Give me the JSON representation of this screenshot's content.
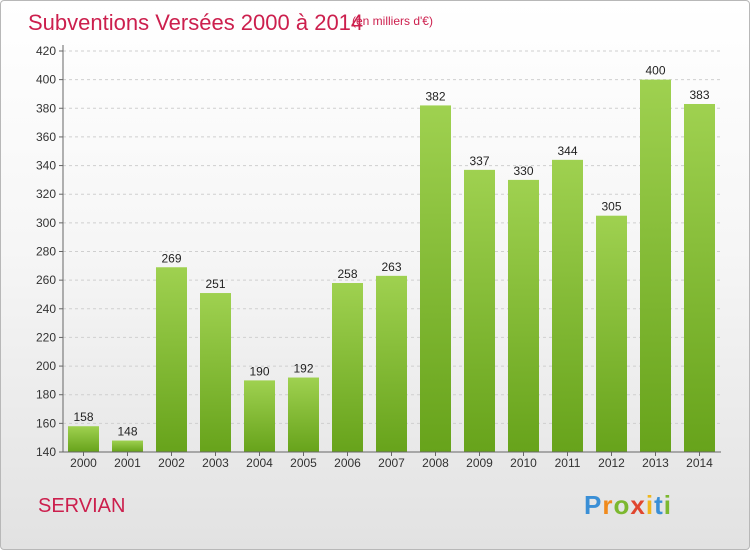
{
  "title": "Subventions Versées 2000 à 2014",
  "unit_note": "(en milliers d'€)",
  "commune": "SERVIAN",
  "logo": {
    "letters": [
      "P",
      "r",
      "o",
      "x",
      "i",
      "t",
      "i"
    ],
    "colors": [
      "#3a8fd6",
      "#f08a1c",
      "#7cb82f",
      "#e0462e",
      "#f0b71c",
      "#3a8fd6",
      "#7cb82f"
    ]
  },
  "colors": {
    "bar_light": "#9fd150",
    "bar_dark": "#67a31b",
    "title": "#cc1f4d"
  },
  "chart_data": {
    "type": "bar",
    "categories": [
      "2000",
      "2001",
      "2002",
      "2003",
      "2004",
      "2005",
      "2006",
      "2007",
      "2008",
      "2009",
      "2010",
      "2011",
      "2012",
      "2013",
      "2014"
    ],
    "values": [
      158,
      148,
      269,
      251,
      190,
      192,
      258,
      263,
      382,
      337,
      330,
      344,
      305,
      400,
      383
    ],
    "ylim": [
      140,
      420
    ],
    "yticks": [
      140,
      160,
      180,
      200,
      220,
      240,
      260,
      280,
      300,
      320,
      340,
      360,
      380,
      400,
      420
    ],
    "grid": true,
    "data_labels": true
  }
}
